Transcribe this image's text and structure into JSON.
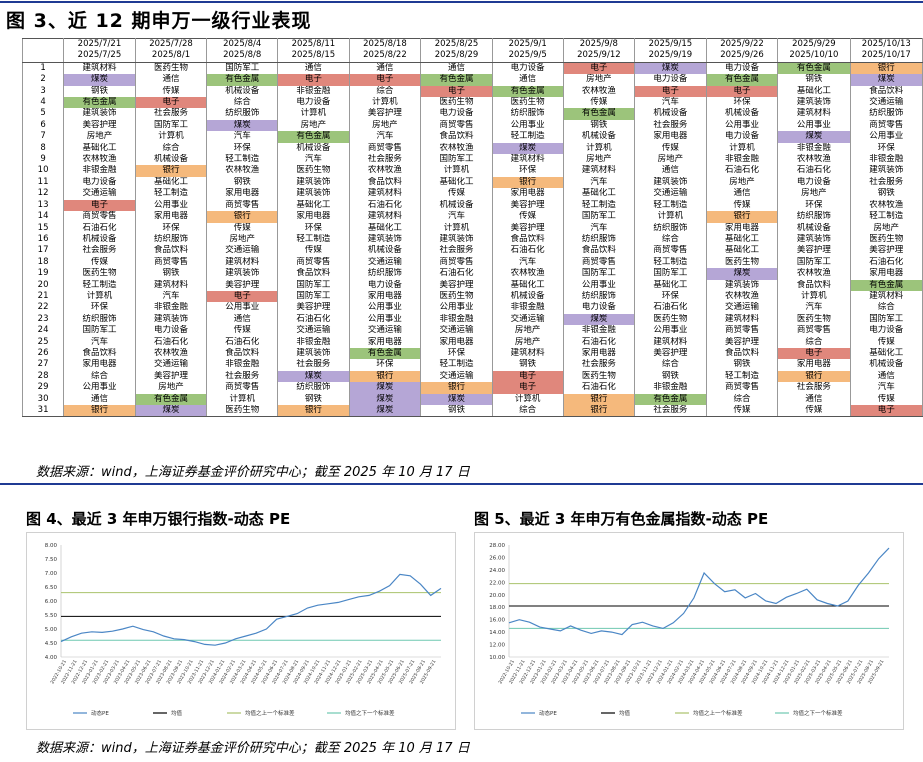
{
  "figure3": {
    "title": "图 3、近 12 期申万一级行业表现",
    "columns": [
      {
        "start": "2025/7/21",
        "end": "2025/7/25"
      },
      {
        "start": "2025/7/28",
        "end": "2025/8/1"
      },
      {
        "start": "2025/8/4",
        "end": "2025/8/8"
      },
      {
        "start": "2025/8/11",
        "end": "2025/8/15"
      },
      {
        "start": "2025/8/18",
        "end": "2025/8/22"
      },
      {
        "start": "2025/8/25",
        "end": "2025/8/29"
      },
      {
        "start": "2025/9/1",
        "end": "2025/9/5"
      },
      {
        "start": "2025/9/8",
        "end": "2025/9/12"
      },
      {
        "start": "2025/9/15",
        "end": "2025/9/19"
      },
      {
        "start": "2025/9/22",
        "end": "2025/9/26"
      },
      {
        "start": "2025/9/29",
        "end": "2025/10/10"
      },
      {
        "start": "2025/10/13",
        "end": "2025/10/17"
      }
    ],
    "highlight_colors": {
      "银行": "#f5b97c",
      "煤炭": "#b5a6d6",
      "有色金属": "#9cc47b",
      "电子": "#e0877c"
    },
    "rows": [
      [
        "建筑材料",
        "医药生物",
        "国防军工",
        "通信",
        "通信",
        "通信",
        "电力设备",
        "电子",
        "煤炭",
        "电力设备",
        "有色金属",
        "银行"
      ],
      [
        "煤炭",
        "通信",
        "有色金属",
        "电子",
        "电子",
        "有色金属",
        "通信",
        "房地产",
        "电力设备",
        "有色金属",
        "钢铁",
        "煤炭"
      ],
      [
        "钢铁",
        "传媒",
        "机械设备",
        "非银金融",
        "综合",
        "电子",
        "有色金属",
        "农林牧渔",
        "电子",
        "电子",
        "基础化工",
        "食品饮料"
      ],
      [
        "有色金属",
        "电子",
        "综合",
        "电力设备",
        "计算机",
        "医药生物",
        "医药生物",
        "传媒",
        "汽车",
        "环保",
        "建筑装饰",
        "交通运输"
      ],
      [
        "建筑装饰",
        "社会服务",
        "纺织服饰",
        "计算机",
        "美容护理",
        "电力设备",
        "纺织服饰",
        "有色金属",
        "机械设备",
        "机械设备",
        "建筑材料",
        "纺织服饰"
      ],
      [
        "美容护理",
        "国防军工",
        "煤炭",
        "房地产",
        "房地产",
        "商贸零售",
        "公用事业",
        "钢铁",
        "社会服务",
        "公用事业",
        "公用事业",
        "商贸零售"
      ],
      [
        "房地产",
        "计算机",
        "汽车",
        "有色金属",
        "汽车",
        "食品饮料",
        "轻工制造",
        "机械设备",
        "家用电器",
        "电力设备",
        "煤炭",
        "公用事业"
      ],
      [
        "基础化工",
        "综合",
        "环保",
        "机械设备",
        "商贸零售",
        "农林牧渔",
        "煤炭",
        "计算机",
        "传媒",
        "计算机",
        "非银金融",
        "环保"
      ],
      [
        "农林牧渔",
        "机械设备",
        "轻工制造",
        "汽车",
        "社会服务",
        "国防军工",
        "建筑材料",
        "房地产",
        "房地产",
        "非银金融",
        "农林牧渔",
        "非银金融"
      ],
      [
        "非银金融",
        "银行",
        "农林牧渔",
        "医药生物",
        "农林牧渔",
        "计算机",
        "环保",
        "建筑材料",
        "通信",
        "石油石化",
        "石油石化",
        "建筑装饰"
      ],
      [
        "电力设备",
        "基础化工",
        "钢铁",
        "建筑装饰",
        "食品饮料",
        "基础化工",
        "银行",
        "汽车",
        "建筑装饰",
        "房地产",
        "电力设备",
        "社会服务"
      ],
      [
        "交通运输",
        "轻工制造",
        "家用电器",
        "建筑装饰",
        "建筑材料",
        "传媒",
        "家用电器",
        "基础化工",
        "交通运输",
        "通信",
        "房地产",
        "钢铁"
      ],
      [
        "电子",
        "公用事业",
        "商贸零售",
        "基础化工",
        "石油石化",
        "机械设备",
        "美容护理",
        "轻工制造",
        "轻工制造",
        "传媒",
        "环保",
        "农林牧渔"
      ],
      [
        "商贸零售",
        "家用电器",
        "银行",
        "家用电器",
        "建筑材料",
        "汽车",
        "传媒",
        "国防军工",
        "计算机",
        "银行",
        "纺织服饰",
        "轻工制造"
      ],
      [
        "石油石化",
        "环保",
        "传媒",
        "环保",
        "基础化工",
        "计算机",
        "美容护理",
        "汽车",
        "纺织服饰",
        "家用电器",
        "机械设备",
        "房地产"
      ],
      [
        "机械设备",
        "纺织服饰",
        "房地产",
        "轻工制造",
        "建筑装饰",
        "建筑装饰",
        "食品饮料",
        "纺织服饰",
        "综合",
        "基础化工",
        "建筑装饰",
        "医药生物"
      ],
      [
        "社会服务",
        "食品饮料",
        "交通运输",
        "传媒",
        "机械设备",
        "社会服务",
        "石油石化",
        "食品饮料",
        "商贸零售",
        "基础化工",
        "美容护理",
        "美容护理"
      ],
      [
        "传媒",
        "商贸零售",
        "建筑材料",
        "商贸零售",
        "交通运输",
        "商贸零售",
        "汽车",
        "商贸零售",
        "轻工制造",
        "医药生物",
        "国防军工",
        "石油石化"
      ],
      [
        "医药生物",
        "钢铁",
        "建筑装饰",
        "食品饮料",
        "纺织服饰",
        "石油石化",
        "农林牧渔",
        "国防军工",
        "国防军工",
        "煤炭",
        "农林牧渔",
        "家用电器"
      ],
      [
        "轻工制造",
        "建筑材料",
        "美容护理",
        "国防军工",
        "电力设备",
        "美容护理",
        "基础化工",
        "公用事业",
        "基础化工",
        "建筑装饰",
        "食品饮料",
        "有色金属"
      ],
      [
        "计算机",
        "汽车",
        "电子",
        "国防军工",
        "家用电器",
        "医药生物",
        "机械设备",
        "纺织服饰",
        "环保",
        "农林牧渔",
        "计算机",
        "建筑材料"
      ],
      [
        "环保",
        "非银金融",
        "公用事业",
        "美容护理",
        "公用事业",
        "公用事业",
        "非银金融",
        "电力设备",
        "石油石化",
        "交通运输",
        "汽车",
        "综合"
      ],
      [
        "纺织服饰",
        "建筑装饰",
        "通信",
        "石油石化",
        "公用事业",
        "非银金融",
        "交通运输",
        "煤炭",
        "医药生物",
        "建筑材料",
        "医药生物",
        "国防军工"
      ],
      [
        "国防军工",
        "电力设备",
        "传媒",
        "交通运输",
        "交通运输",
        "交通运输",
        "房地产",
        "非银金融",
        "公用事业",
        "商贸零售",
        "商贸零售",
        "电力设备"
      ],
      [
        "汽车",
        "石油石化",
        "石油石化",
        "非银金融",
        "家用电器",
        "家用电器",
        "房地产",
        "石油石化",
        "建筑材料",
        "美容护理",
        "综合",
        "传媒"
      ],
      [
        "食品饮料",
        "农林牧渔",
        "食品饮料",
        "建筑装饰",
        "有色金属",
        "环保",
        "建筑材料",
        "家用电器",
        "美容护理",
        "食品饮料",
        "电子",
        "基础化工"
      ],
      [
        "家用电器",
        "交通运输",
        "非银金融",
        "社会服务",
        "环保",
        "轻工制造",
        "钢铁",
        "社会服务",
        "综合",
        "钢铁",
        "家用电器",
        "机械设备"
      ],
      [
        "综合",
        "美容护理",
        "社会服务",
        "煤炭",
        "银行",
        "交通运输",
        "电子",
        "医药生物",
        "钢铁",
        "轻工制造",
        "银行",
        "通信"
      ],
      [
        "公用事业",
        "房地产",
        "商贸零售",
        "纺织服饰",
        "煤炭",
        "银行",
        "电子",
        "石油石化",
        "非银金融",
        "商贸零售",
        "社会服务",
        "汽车"
      ],
      [
        "通信",
        "有色金属",
        "计算机",
        "钢铁",
        "煤炭",
        "煤炭",
        "计算机",
        "银行",
        "有色金属",
        "综合",
        "通信",
        "传媒"
      ],
      [
        "银行",
        "煤炭",
        "医药生物",
        "银行",
        "煤炭",
        "钢铁",
        "综合",
        "银行",
        "社会服务",
        "传媒",
        "传媒",
        "电子"
      ]
    ],
    "source": "数据来源：wind，上海证券基金评价研究中心；截至 2025 年 10 月 17 日"
  },
  "figure4": {
    "title": "图 4、最近 3 年申万银行指数-动态 PE",
    "chart_data": {
      "type": "line",
      "ylim": [
        4.0,
        8.0
      ],
      "yticks": [
        "8.00",
        "7.50",
        "7.00",
        "6.50",
        "6.00",
        "5.50",
        "5.00",
        "4.50",
        "4.00"
      ],
      "x_tick_labels": [
        "2022-10-21",
        "2022-11-21",
        "2022-12-21",
        "2023-01-21",
        "2023-02-21",
        "2023-03-21",
        "2023-04-21",
        "2023-05-21",
        "2023-06-21",
        "2023-07-21",
        "2023-08-21",
        "2023-09-21",
        "2023-10-21",
        "2023-11-21",
        "2023-12-21",
        "2024-01-21",
        "2024-02-21",
        "2024-03-21",
        "2024-04-21",
        "2024-05-21",
        "2024-06-21",
        "2024-07-21",
        "2024-08-21",
        "2024-09-21",
        "2024-10-21",
        "2024-11-21",
        "2024-12-21",
        "2025-01-21",
        "2025-02-21",
        "2025-03-21",
        "2025-04-21",
        "2025-05-21",
        "2025-06-21",
        "2025-07-21",
        "2025-08-21",
        "2025-09-21"
      ],
      "series": [
        {
          "name": "动态PE",
          "values": [
            4.55,
            4.72,
            4.85,
            4.9,
            4.88,
            4.92,
            5.0,
            5.1,
            4.98,
            4.9,
            4.75,
            4.65,
            4.62,
            4.55,
            4.45,
            4.42,
            4.5,
            4.65,
            4.75,
            4.85,
            5.0,
            5.35,
            5.45,
            5.55,
            5.75,
            5.85,
            5.9,
            5.95,
            6.05,
            6.15,
            6.2,
            6.35,
            6.55,
            6.95,
            6.9,
            6.6,
            6.2,
            6.45
          ]
        },
        {
          "name": "均值",
          "constant": 5.45
        },
        {
          "name": "均值之上一个标准差",
          "constant": 6.3
        },
        {
          "name": "均值之下一个标准差",
          "constant": 4.6
        }
      ],
      "legend": [
        "动态PE",
        "均值",
        "均值之上一个标准差",
        "均值之下一个标准差"
      ],
      "legend_position": "bottom"
    }
  },
  "figure5": {
    "title": "图 5、最近 3 年申万有色金属指数-动态 PE",
    "chart_data": {
      "type": "line",
      "ylim": [
        10.0,
        28.0
      ],
      "yticks": [
        "28.00",
        "26.00",
        "24.00",
        "22.00",
        "20.00",
        "18.00",
        "16.00",
        "14.00",
        "12.00",
        "10.00"
      ],
      "x_tick_labels": [
        "2022-10-21",
        "2022-11-21",
        "2022-12-21",
        "2023-01-21",
        "2023-02-21",
        "2023-03-21",
        "2023-04-21",
        "2023-05-21",
        "2023-06-21",
        "2023-07-21",
        "2023-08-21",
        "2023-09-21",
        "2023-10-21",
        "2023-11-21",
        "2023-12-21",
        "2024-01-21",
        "2024-02-21",
        "2024-03-21",
        "2024-04-21",
        "2024-05-21",
        "2024-06-21",
        "2024-07-21",
        "2024-08-21",
        "2024-09-21",
        "2024-10-21",
        "2024-11-21",
        "2024-12-21",
        "2025-01-21",
        "2025-02-21",
        "2025-03-21",
        "2025-04-21",
        "2025-05-21",
        "2025-06-21",
        "2025-07-21",
        "2025-08-21",
        "2025-09-21"
      ],
      "series": [
        {
          "name": "动态PE",
          "values": [
            15.5,
            16.0,
            15.6,
            14.8,
            14.5,
            14.2,
            15.0,
            14.3,
            13.8,
            14.2,
            14.0,
            13.6,
            15.2,
            15.6,
            15.0,
            14.6,
            15.5,
            17.0,
            19.5,
            23.5,
            21.8,
            20.5,
            20.8,
            19.5,
            20.2,
            19.0,
            18.6,
            19.6,
            20.2,
            20.9,
            19.2,
            18.6,
            18.2,
            19.0,
            21.5,
            23.5,
            25.8,
            27.5
          ]
        },
        {
          "name": "均值",
          "constant": 18.2
        },
        {
          "name": "均值之上一个标准差",
          "constant": 21.8
        },
        {
          "name": "均值之下一个标准差",
          "constant": 14.6
        }
      ],
      "legend": [
        "动态PE",
        "均值",
        "均值之上一个标准差",
        "均值之下一个标准差"
      ],
      "legend_position": "bottom"
    }
  },
  "footer_source": "数据来源：wind，上海证券基金评价研究中心；截至 2025 年 10 月 17 日"
}
